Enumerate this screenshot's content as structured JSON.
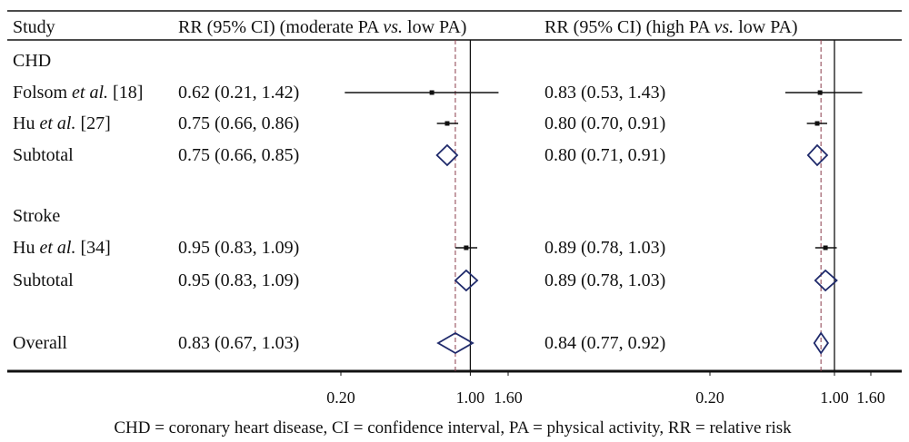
{
  "chart_data": {
    "type": "forest",
    "headers": {
      "study": "Study",
      "left": [
        "RR (95% CI) (moderate PA ",
        "vs.",
        " low PA)"
      ],
      "right": [
        "RR (95% CI) (high PA ",
        "vs.",
        " low PA)"
      ]
    },
    "rows": [
      {
        "kind": "group",
        "label": "CHD"
      },
      {
        "kind": "study",
        "label": [
          "Folsom ",
          "et al.",
          " [18]"
        ],
        "moderate": {
          "rr": 0.62,
          "lo": 0.21,
          "hi": 1.42,
          "text": "0.62 (0.21, 1.42)"
        },
        "high": {
          "rr": 0.83,
          "lo": 0.53,
          "hi": 1.43,
          "text": "0.83 (0.53, 1.43)"
        }
      },
      {
        "kind": "study",
        "label": [
          "Hu ",
          "et al.",
          " [27]"
        ],
        "moderate": {
          "rr": 0.75,
          "lo": 0.66,
          "hi": 0.86,
          "text": "0.75 (0.66, 0.86)"
        },
        "high": {
          "rr": 0.8,
          "lo": 0.7,
          "hi": 0.91,
          "text": "0.80 (0.70, 0.91)"
        }
      },
      {
        "kind": "subtotal",
        "label": [
          "Subtotal"
        ],
        "moderate": {
          "rr": 0.75,
          "lo": 0.66,
          "hi": 0.85,
          "text": "0.75 (0.66, 0.85)"
        },
        "high": {
          "rr": 0.8,
          "lo": 0.71,
          "hi": 0.91,
          "text": "0.80 (0.71, 0.91)"
        }
      },
      {
        "kind": "spacer"
      },
      {
        "kind": "group",
        "label": "Stroke"
      },
      {
        "kind": "study",
        "label": [
          "Hu ",
          "et al.",
          " [34]"
        ],
        "moderate": {
          "rr": 0.95,
          "lo": 0.83,
          "hi": 1.09,
          "text": "0.95 (0.83, 1.09)"
        },
        "high": {
          "rr": 0.89,
          "lo": 0.78,
          "hi": 1.03,
          "text": "0.89 (0.78, 1.03)"
        }
      },
      {
        "kind": "subtotal",
        "label": [
          "Subtotal"
        ],
        "moderate": {
          "rr": 0.95,
          "lo": 0.83,
          "hi": 1.09,
          "text": "0.95 (0.83, 1.09)"
        },
        "high": {
          "rr": 0.89,
          "lo": 0.78,
          "hi": 1.03,
          "text": "0.89 (0.78, 1.03)"
        }
      },
      {
        "kind": "spacer"
      },
      {
        "kind": "overall",
        "label": [
          "Overall"
        ],
        "moderate": {
          "rr": 0.83,
          "lo": 0.67,
          "hi": 1.03,
          "text": "0.83 (0.67, 1.03)"
        },
        "high": {
          "rr": 0.84,
          "lo": 0.77,
          "hi": 0.92,
          "text": "0.84 (0.77, 0.92)"
        }
      }
    ],
    "axis": {
      "scale": "log",
      "ticks": [
        0.2,
        1.0,
        1.6
      ],
      "tick_labels": [
        "0.20",
        "1.00",
        "1.60"
      ],
      "null_value": 1.0
    },
    "pooled_reference": {
      "moderate": 0.83,
      "high": 0.84
    },
    "colors": {
      "diamond": "#1f2a6b",
      "line": "#111111",
      "reference": "#8a3a4a"
    },
    "footnote": "CHD = coronary heart disease, CI = confidence interval, PA = physical activity, RR = relative risk"
  }
}
